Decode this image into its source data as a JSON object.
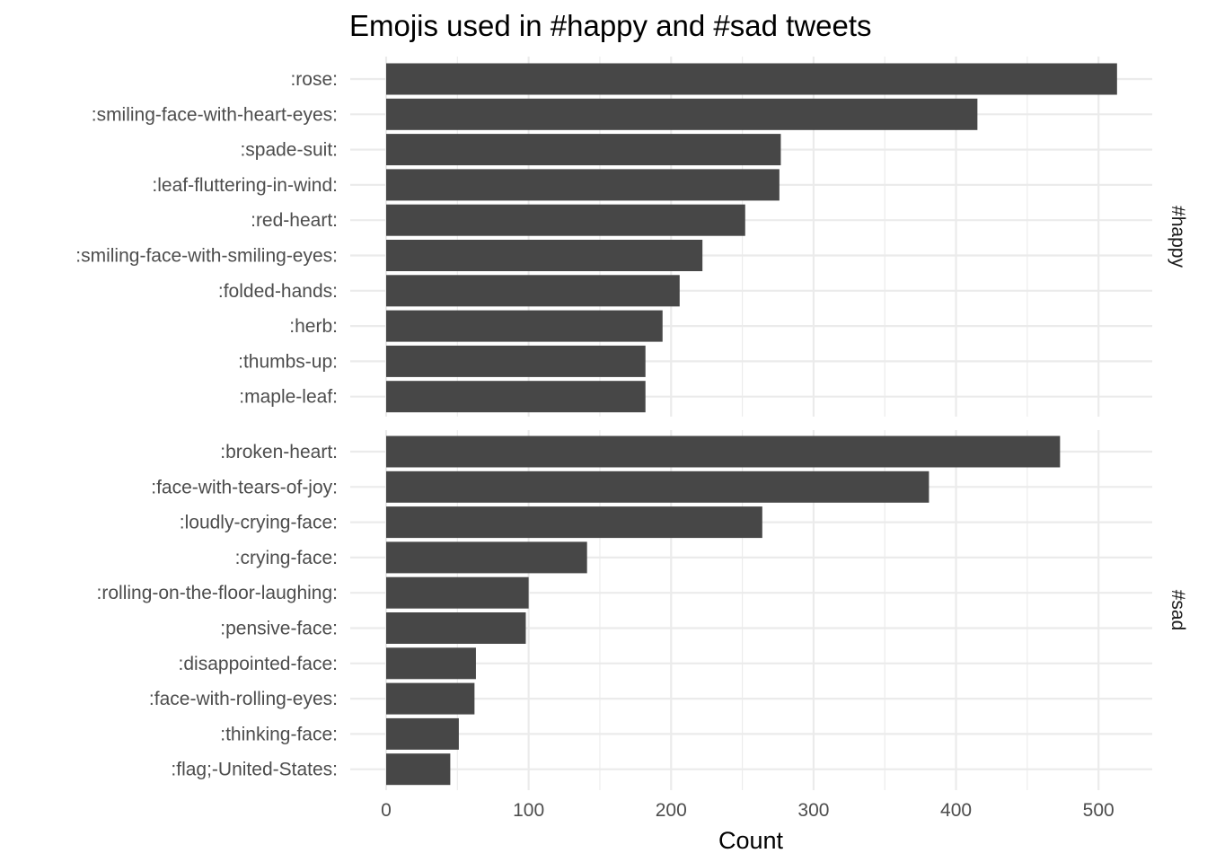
{
  "chart_data": {
    "type": "bar",
    "orientation": "horizontal",
    "title": "Emojis used in #happy and #sad tweets",
    "xlabel": "Count",
    "ylabel": "",
    "xlim": [
      0,
      540
    ],
    "x_ticks": [
      0,
      100,
      200,
      300,
      400,
      500
    ],
    "grid": true,
    "bar_color": "#474747",
    "grid_color": "#ebebeb",
    "facets": [
      {
        "label": "#happy",
        "categories": [
          ":rose:",
          ":smiling-face-with-heart-eyes:",
          ":spade-suit:",
          ":leaf-fluttering-in-wind:",
          ":red-heart:",
          ":smiling-face-with-smiling-eyes:",
          ":folded-hands:",
          ":herb:",
          ":thumbs-up:",
          ":maple-leaf:"
        ],
        "values": [
          513,
          415,
          277,
          276,
          252,
          222,
          206,
          194,
          182,
          182
        ]
      },
      {
        "label": "#sad",
        "categories": [
          ":broken-heart:",
          ":face-with-tears-of-joy:",
          ":loudly-crying-face:",
          ":crying-face:",
          ":rolling-on-the-floor-laughing:",
          ":pensive-face:",
          ":disappointed-face:",
          ":face-with-rolling-eyes:",
          ":thinking-face:",
          ":flag;-United-States:"
        ],
        "values": [
          473,
          381,
          264,
          141,
          100,
          98,
          63,
          62,
          51,
          45
        ]
      }
    ]
  }
}
